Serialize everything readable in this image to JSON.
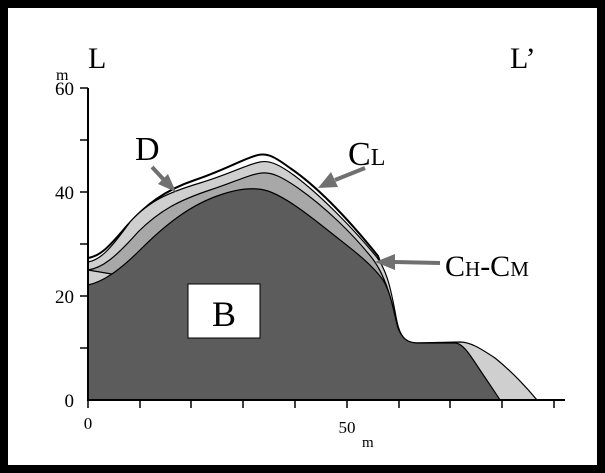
{
  "axes": {
    "y_unit": "m",
    "y_ticks": [
      "60",
      "40",
      "20",
      "0"
    ],
    "x_ticks": [
      "0",
      "50"
    ],
    "x_unit": "m"
  },
  "labels": {
    "left": "L",
    "right": "L’",
    "d": "D",
    "cl": [
      "C",
      "L"
    ],
    "ch_cm": [
      "C",
      "H",
      "-C",
      "M"
    ],
    "b": "B"
  }
}
